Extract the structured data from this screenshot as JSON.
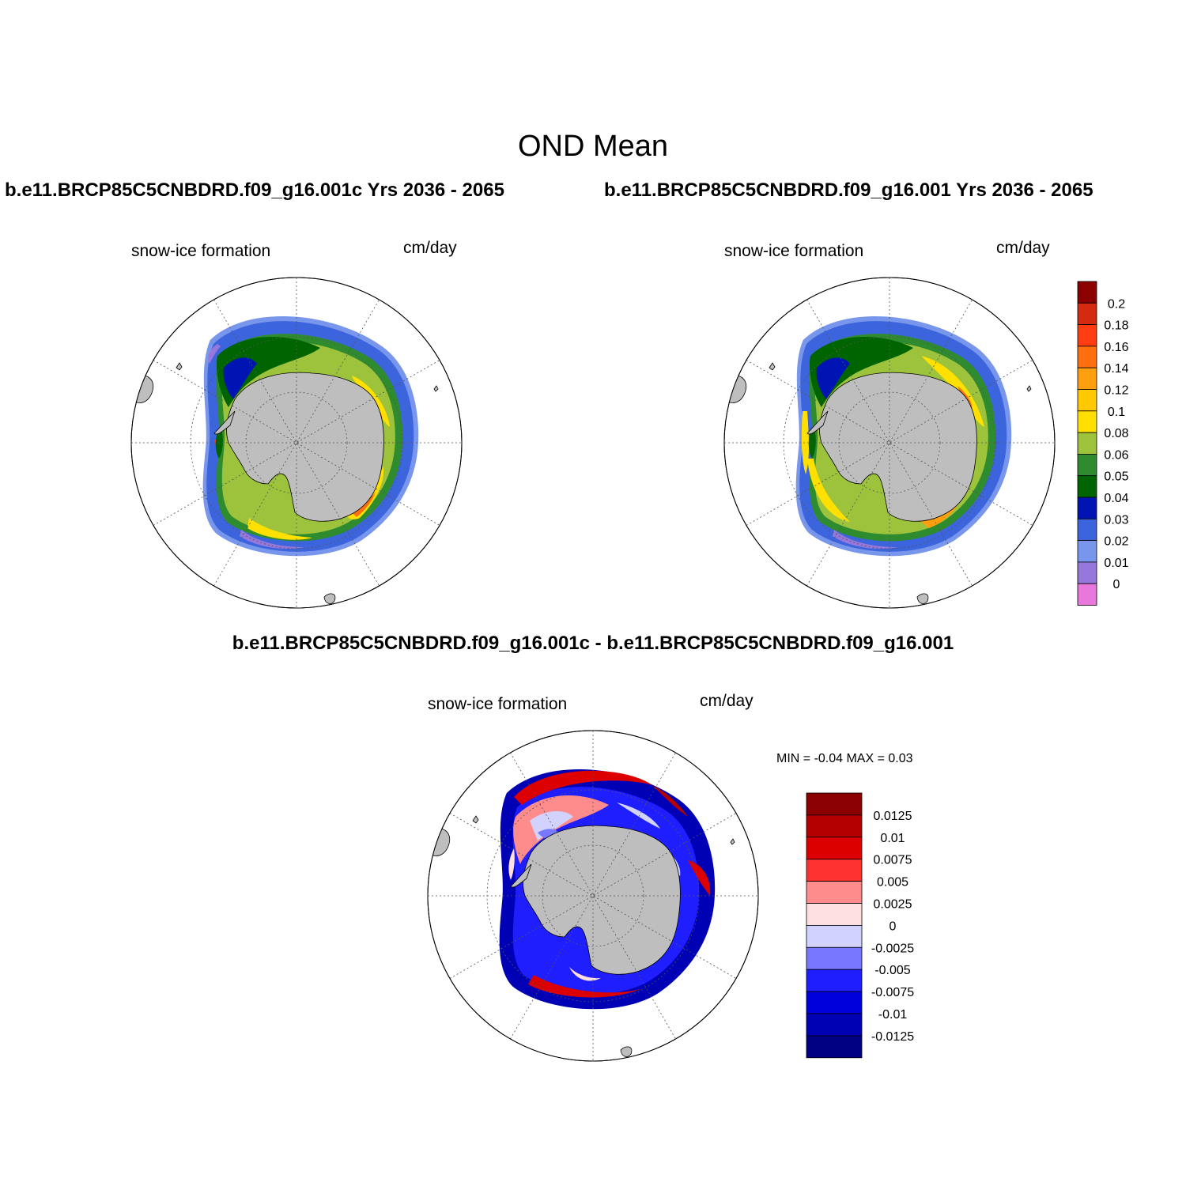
{
  "main_title": "OND Mean",
  "case_titles": [
    "b.e11.BRCP85C5CNBDRD.f09_g16.001c  Yrs 2036 - 2065",
    "b.e11.BRCP85C5CNBDRD.f09_g16.001  Yrs 2036 - 2065"
  ],
  "diff_title": "b.e11.BRCP85C5CNBDRD.f09_g16.001c - b.e11.BRCP85C5CNBDRD.f09_g16.001",
  "panels": [
    {
      "variable": "snow-ice formation",
      "units": "cm/day"
    },
    {
      "variable": "snow-ice formation",
      "units": "cm/day"
    },
    {
      "variable": "snow-ice formation",
      "units": "cm/day"
    }
  ],
  "minmax_text": "MIN =  -0.04 MAX =   0.03",
  "colorbar_top": {
    "labels": [
      "0.2",
      "0.18",
      "0.16",
      "0.14",
      "0.12",
      "0.1",
      "0.08",
      "0.06",
      "0.05",
      "0.04",
      "0.03",
      "0.02",
      "0.01",
      "0"
    ],
    "colors": [
      "#8b0000",
      "#d42a12",
      "#ff3c12",
      "#ff6e0f",
      "#ff9f0f",
      "#ffc800",
      "#ffe000",
      "#9dc23c",
      "#2e8b2e",
      "#006400",
      "#0014b4",
      "#3c64dc",
      "#7896ec",
      "#9678dc",
      "#e878dc"
    ]
  },
  "colorbar_diff": {
    "labels": [
      "0.0125",
      "0.01",
      "0.0075",
      "0.005",
      "0.0025",
      "0",
      "-0.0025",
      "-0.005",
      "-0.0075",
      "-0.01",
      "-0.0125"
    ],
    "colors": [
      "#8b0000",
      "#b40000",
      "#dc0000",
      "#ff3232",
      "#ff8c8c",
      "#ffe0e0",
      "#d2d2ff",
      "#7878ff",
      "#1e1eff",
      "#0000dc",
      "#0000b4",
      "#000082"
    ]
  }
}
